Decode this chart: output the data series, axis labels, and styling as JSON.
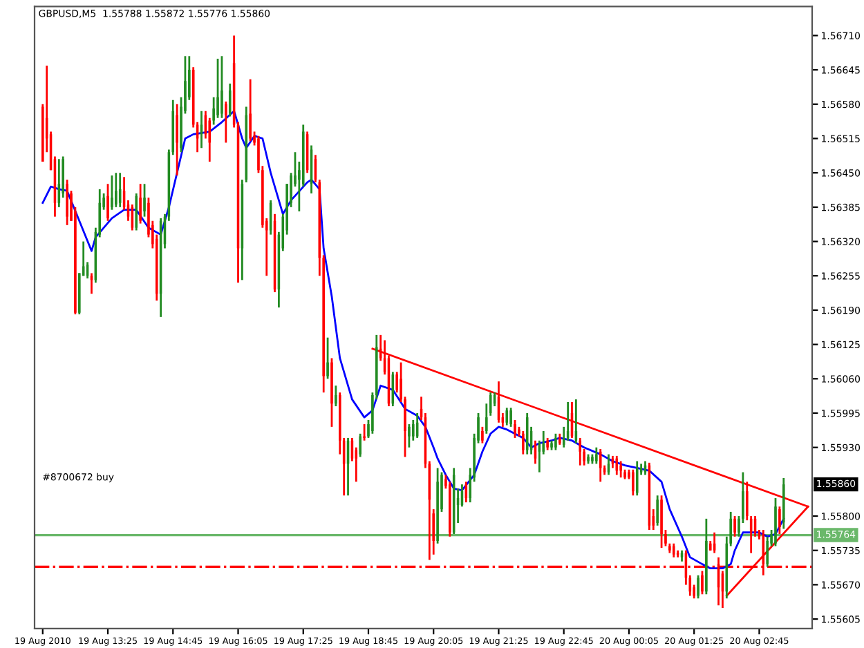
{
  "chart_data": {
    "type": "candlestick",
    "title": "GBPUSD,M5  1.55788 1.55872 1.55776 1.55860",
    "x": [
      "2010-08-19T12:05",
      "2010-08-19T12:10",
      "2010-08-19T12:15",
      "2010-08-19T12:20",
      "2010-08-19T12:25",
      "2010-08-19T12:30",
      "2010-08-19T12:35",
      "2010-08-19T12:40",
      "2010-08-19T12:45",
      "2010-08-19T12:50",
      "2010-08-19T12:55",
      "2010-08-19T13:00",
      "2010-08-19T13:05",
      "2010-08-19T13:10",
      "2010-08-19T13:15",
      "2010-08-19T13:20",
      "2010-08-19T13:25",
      "2010-08-19T13:30",
      "2010-08-19T13:35",
      "2010-08-19T13:40",
      "2010-08-19T13:45",
      "2010-08-19T13:50",
      "2010-08-19T13:55",
      "2010-08-19T14:00",
      "2010-08-19T14:05",
      "2010-08-19T14:10",
      "2010-08-19T14:15",
      "2010-08-19T14:20",
      "2010-08-19T14:25",
      "2010-08-19T14:30",
      "2010-08-19T14:35",
      "2010-08-19T14:40",
      "2010-08-19T14:45",
      "2010-08-19T14:50",
      "2010-08-19T14:55",
      "2010-08-19T15:00",
      "2010-08-19T15:05",
      "2010-08-19T15:10",
      "2010-08-19T15:15",
      "2010-08-19T15:20",
      "2010-08-19T15:25",
      "2010-08-19T15:30",
      "2010-08-19T15:35",
      "2010-08-19T15:40",
      "2010-08-19T15:45",
      "2010-08-19T15:50",
      "2010-08-19T15:55",
      "2010-08-19T16:00",
      "2010-08-19T16:05",
      "2010-08-19T16:10",
      "2010-08-19T16:15",
      "2010-08-19T16:20",
      "2010-08-19T16:25",
      "2010-08-19T16:30",
      "2010-08-19T16:35",
      "2010-08-19T16:40",
      "2010-08-19T16:45",
      "2010-08-19T16:50",
      "2010-08-19T16:55",
      "2010-08-19T17:00",
      "2010-08-19T17:05",
      "2010-08-19T17:10",
      "2010-08-19T17:15",
      "2010-08-19T17:20",
      "2010-08-19T17:25",
      "2010-08-19T17:30",
      "2010-08-19T17:35",
      "2010-08-19T17:40",
      "2010-08-19T17:45",
      "2010-08-19T17:50",
      "2010-08-19T17:55",
      "2010-08-19T18:00",
      "2010-08-19T18:05",
      "2010-08-19T18:10",
      "2010-08-19T18:15",
      "2010-08-19T18:20",
      "2010-08-19T18:25",
      "2010-08-19T18:30",
      "2010-08-19T18:35",
      "2010-08-19T18:40",
      "2010-08-19T18:45",
      "2010-08-19T18:50",
      "2010-08-19T18:55",
      "2010-08-19T19:00",
      "2010-08-19T19:05",
      "2010-08-19T19:10",
      "2010-08-19T19:15",
      "2010-08-19T19:20",
      "2010-08-19T19:25",
      "2010-08-19T19:30",
      "2010-08-19T19:35",
      "2010-08-19T19:40",
      "2010-08-19T19:45",
      "2010-08-19T19:50",
      "2010-08-19T19:55",
      "2010-08-19T20:00",
      "2010-08-19T20:05",
      "2010-08-19T20:10",
      "2010-08-19T20:15",
      "2010-08-19T20:20",
      "2010-08-19T20:25",
      "2010-08-19T20:30",
      "2010-08-19T20:35",
      "2010-08-19T20:40",
      "2010-08-19T20:45",
      "2010-08-19T20:50",
      "2010-08-19T20:55",
      "2010-08-19T21:00",
      "2010-08-19T21:05",
      "2010-08-19T21:10",
      "2010-08-19T21:15",
      "2010-08-19T21:20",
      "2010-08-19T21:25",
      "2010-08-19T21:30",
      "2010-08-19T21:35",
      "2010-08-19T21:40",
      "2010-08-19T21:45",
      "2010-08-19T21:50",
      "2010-08-19T21:55",
      "2010-08-19T22:00",
      "2010-08-19T22:05",
      "2010-08-19T22:10",
      "2010-08-19T22:15",
      "2010-08-19T22:20",
      "2010-08-19T22:25",
      "2010-08-19T22:30",
      "2010-08-19T22:35",
      "2010-08-19T22:40",
      "2010-08-19T22:45",
      "2010-08-19T22:50",
      "2010-08-19T22:55",
      "2010-08-19T23:00",
      "2010-08-19T23:05",
      "2010-08-19T23:10",
      "2010-08-19T23:15",
      "2010-08-19T23:20",
      "2010-08-19T23:25",
      "2010-08-19T23:30",
      "2010-08-19T23:35",
      "2010-08-19T23:40",
      "2010-08-19T23:45",
      "2010-08-19T23:50",
      "2010-08-19T23:55",
      "2010-08-20T00:00",
      "2010-08-20T00:05",
      "2010-08-20T00:10",
      "2010-08-20T00:15",
      "2010-08-20T00:20",
      "2010-08-20T00:25",
      "2010-08-20T00:30",
      "2010-08-20T00:35",
      "2010-08-20T00:40",
      "2010-08-20T00:45",
      "2010-08-20T00:50",
      "2010-08-20T00:55",
      "2010-08-20T01:00",
      "2010-08-20T01:05",
      "2010-08-20T01:10",
      "2010-08-20T01:15",
      "2010-08-20T01:20",
      "2010-08-20T01:25",
      "2010-08-20T01:30",
      "2010-08-20T01:35",
      "2010-08-20T01:40",
      "2010-08-20T01:45",
      "2010-08-20T01:50",
      "2010-08-20T01:55",
      "2010-08-20T02:00",
      "2010-08-20T02:05",
      "2010-08-20T02:10",
      "2010-08-20T02:15",
      "2010-08-20T02:20",
      "2010-08-20T02:25",
      "2010-08-20T02:30",
      "2010-08-20T02:35",
      "2010-08-20T02:40",
      "2010-08-20T02:45",
      "2010-08-20T02:50",
      "2010-08-20T02:55",
      "2010-08-20T03:00",
      "2010-08-20T03:05",
      "2010-08-20T03:10",
      "2010-08-20T03:15"
    ],
    "ohlc": [
      [
        1.56575,
        1.5658,
        1.56471,
        1.56471
      ],
      [
        1.56554,
        1.56653,
        1.56489,
        1.56515
      ],
      [
        1.56523,
        1.56528,
        1.56455,
        1.56455
      ],
      [
        1.56476,
        1.56481,
        1.56367,
        1.56393
      ],
      [
        1.56393,
        1.56476,
        1.56385,
        1.56429
      ],
      [
        1.56411,
        1.56481,
        1.56403,
        1.56476
      ],
      [
        1.56429,
        1.56437,
        1.56351,
        1.56367
      ],
      [
        1.56411,
        1.56416,
        1.56359,
        1.56359
      ],
      [
        1.56377,
        1.56385,
        1.56182,
        1.56185
      ],
      [
        1.56185,
        1.5626,
        1.56182,
        1.5626
      ],
      [
        1.56255,
        1.5632,
        1.56255,
        1.56273
      ],
      [
        1.56255,
        1.56281,
        1.5625,
        1.56276
      ],
      [
        1.56255,
        1.5626,
        1.56221,
        1.56247
      ],
      [
        1.56247,
        1.56346,
        1.56242,
        1.56338
      ],
      [
        1.56333,
        1.56419,
        1.56328,
        1.56393
      ],
      [
        1.56385,
        1.56411,
        1.5638,
        1.56403
      ],
      [
        1.56406,
        1.56429,
        1.56359,
        1.56364
      ],
      [
        1.56385,
        1.56445,
        1.5638,
        1.56403
      ],
      [
        1.5639,
        1.5645,
        1.56385,
        1.56416
      ],
      [
        1.56393,
        1.5645,
        1.56385,
        1.56419
      ],
      [
        1.56416,
        1.56442,
        1.5638,
        1.56385
      ],
      [
        1.5639,
        1.56398,
        1.56359,
        1.56367
      ],
      [
        1.56385,
        1.5639,
        1.56341,
        1.56346
      ],
      [
        1.56346,
        1.56411,
        1.56341,
        1.56406
      ],
      [
        1.56403,
        1.56429,
        1.56354,
        1.56359
      ],
      [
        1.56377,
        1.56429,
        1.56367,
        1.56403
      ],
      [
        1.56393,
        1.56403,
        1.56328,
        1.56333
      ],
      [
        1.56351,
        1.56359,
        1.56307,
        1.56315
      ],
      [
        1.56325,
        1.56333,
        1.56208,
        1.56221
      ],
      [
        1.56221,
        1.56364,
        1.56177,
        1.56359
      ],
      [
        1.56315,
        1.56372,
        1.56307,
        1.56367
      ],
      [
        1.56367,
        1.56494,
        1.56359,
        1.56489
      ],
      [
        1.56489,
        1.56588,
        1.56484,
        1.56567
      ],
      [
        1.56559,
        1.5658,
        1.56445,
        1.56507
      ],
      [
        1.56497,
        1.56593,
        1.56489,
        1.56575
      ],
      [
        1.56567,
        1.56671,
        1.56562,
        1.56624
      ],
      [
        1.56593,
        1.56671,
        1.56588,
        1.56645
      ],
      [
        1.56645,
        1.5665,
        1.56536,
        1.56541
      ],
      [
        1.56541,
        1.56546,
        1.56489,
        1.56515
      ],
      [
        1.56523,
        1.56567,
        1.56497,
        1.56541
      ],
      [
        1.56559,
        1.56567,
        1.56515,
        1.56523
      ],
      [
        1.56549,
        1.56554,
        1.56471,
        1.56507
      ],
      [
        1.56549,
        1.56593,
        1.56541,
        1.56572
      ],
      [
        1.56559,
        1.56666,
        1.56554,
        1.56593
      ],
      [
        1.56562,
        1.56671,
        1.56554,
        1.56606
      ],
      [
        1.5658,
        1.56585,
        1.56507,
        1.56559
      ],
      [
        1.56562,
        1.56619,
        1.56557,
        1.56606
      ],
      [
        1.56658,
        1.5671,
        1.56536,
        1.56541
      ],
      [
        1.56541,
        1.56546,
        1.56242,
        1.56307
      ],
      [
        1.56307,
        1.56437,
        1.56247,
        1.56429
      ],
      [
        1.56437,
        1.56575,
        1.56432,
        1.56559
      ],
      [
        1.56562,
        1.56627,
        1.5651,
        1.56515
      ],
      [
        1.5652,
        1.56528,
        1.56502,
        1.56507
      ],
      [
        1.56515,
        1.5652,
        1.5645,
        1.56455
      ],
      [
        1.56455,
        1.56463,
        1.56346,
        1.56351
      ],
      [
        1.56359,
        1.56364,
        1.56255,
        1.56341
      ],
      [
        1.56341,
        1.56398,
        1.56333,
        1.56393
      ],
      [
        1.56359,
        1.56372,
        1.56224,
        1.56229
      ],
      [
        1.56229,
        1.56338,
        1.56195,
        1.56333
      ],
      [
        1.56307,
        1.56372,
        1.56302,
        1.56367
      ],
      [
        1.56341,
        1.56429,
        1.56333,
        1.56429
      ],
      [
        1.56393,
        1.5645,
        1.56385,
        1.56445
      ],
      [
        1.56429,
        1.56489,
        1.56424,
        1.56445
      ],
      [
        1.56437,
        1.56471,
        1.56377,
        1.56455
      ],
      [
        1.56429,
        1.56541,
        1.56424,
        1.56528
      ],
      [
        1.56523,
        1.56528,
        1.5645,
        1.56455
      ],
      [
        1.56429,
        1.56502,
        1.56411,
        1.56494
      ],
      [
        1.56476,
        1.56484,
        1.56432,
        1.56437
      ],
      [
        1.56432,
        1.56437,
        1.56255,
        1.56289
      ],
      [
        1.56289,
        1.56294,
        1.56034,
        1.56065
      ],
      [
        1.56065,
        1.56138,
        1.5606,
        1.56091
      ],
      [
        1.56091,
        1.56099,
        1.55969,
        1.56013
      ],
      [
        1.56013,
        1.56047,
        1.56008,
        1.56029
      ],
      [
        1.56029,
        1.56034,
        1.55917,
        1.55943
      ],
      [
        1.55943,
        1.55948,
        1.55839,
        1.55899
      ],
      [
        1.55899,
        1.55948,
        1.55839,
        1.55943
      ],
      [
        1.55943,
        1.55948,
        1.55904,
        1.55909
      ],
      [
        1.55925,
        1.5593,
        1.55865,
        1.55909
      ],
      [
        1.55917,
        1.55956,
        1.55912,
        1.55951
      ],
      [
        1.55951,
        1.55974,
        1.55943,
        1.55948
      ],
      [
        1.55951,
        1.55982,
        1.55948,
        1.55974
      ],
      [
        1.55961,
        1.56034,
        1.55956,
        1.56029
      ],
      [
        1.56029,
        1.56143,
        1.56021,
        1.5612
      ],
      [
        1.56117,
        1.56143,
        1.56094,
        1.56099
      ],
      [
        1.56099,
        1.56133,
        1.56068,
        1.56073
      ],
      [
        1.56099,
        1.56104,
        1.56008,
        1.56013
      ],
      [
        1.56013,
        1.56073,
        1.56008,
        1.56068
      ],
      [
        1.56068,
        1.56073,
        1.56034,
        1.56039
      ],
      [
        1.5606,
        1.56091,
        1.56016,
        1.56021
      ],
      [
        1.56021,
        1.56026,
        1.55912,
        1.55961
      ],
      [
        1.55951,
        1.55974,
        1.5593,
        1.55969
      ],
      [
        1.55951,
        1.55982,
        1.55943,
        1.55974
      ],
      [
        1.55951,
        1.55995,
        1.55948,
        1.55977
      ],
      [
        1.56003,
        1.56026,
        1.55982,
        1.55987
      ],
      [
        1.55987,
        1.55995,
        1.55891,
        1.55899
      ],
      [
        1.55899,
        1.55904,
        1.55717,
        1.55831
      ],
      [
        1.55805,
        1.55813,
        1.55727,
        1.55753
      ],
      [
        1.55753,
        1.55891,
        1.55748,
        1.55865
      ],
      [
        1.55813,
        1.55883,
        1.55808,
        1.55878
      ],
      [
        1.5587,
        1.55878,
        1.55852,
        1.55857
      ],
      [
        1.5586,
        1.55865,
        1.55761,
        1.55769
      ],
      [
        1.55769,
        1.55891,
        1.55766,
        1.55878
      ],
      [
        1.55821,
        1.55852,
        1.55787,
        1.55834
      ],
      [
        1.55821,
        1.5586,
        1.55818,
        1.55847
      ],
      [
        1.5586,
        1.55865,
        1.55826,
        1.55834
      ],
      [
        1.55834,
        1.55891,
        1.55826,
        1.55878
      ],
      [
        1.55873,
        1.55956,
        1.55865,
        1.55948
      ],
      [
        1.55943,
        1.55995,
        1.55938,
        1.55987
      ],
      [
        1.55961,
        1.55969,
        1.55938,
        1.55943
      ],
      [
        1.55961,
        1.56013,
        1.55956,
        1.55987
      ],
      [
        1.55995,
        1.56034,
        1.5599,
        1.56029
      ],
      [
        1.56013,
        1.56034,
        1.56008,
        1.56029
      ],
      [
        1.56026,
        1.56055,
        1.55977,
        1.55982
      ],
      [
        1.55987,
        1.55995,
        1.55969,
        1.55977
      ],
      [
        1.55977,
        1.56005,
        1.55972,
        1.56
      ],
      [
        1.55974,
        1.56005,
        1.55969,
        1.56
      ],
      [
        1.55974,
        1.55982,
        1.55948,
        1.55956
      ],
      [
        1.55964,
        1.55969,
        1.55951,
        1.55956
      ],
      [
        1.55956,
        1.55961,
        1.55917,
        1.55925
      ],
      [
        1.55925,
        1.55995,
        1.55917,
        1.55987
      ],
      [
        1.55925,
        1.55969,
        1.55917,
        1.55961
      ],
      [
        1.55935,
        1.55943,
        1.55899,
        1.55909
      ],
      [
        1.55922,
        1.55943,
        1.55883,
        1.55938
      ],
      [
        1.55922,
        1.55961,
        1.55917,
        1.55938
      ],
      [
        1.55943,
        1.55948,
        1.55925,
        1.5593
      ],
      [
        1.5593,
        1.55943,
        1.55925,
        1.55938
      ],
      [
        1.5593,
        1.55956,
        1.55925,
        1.55948
      ],
      [
        1.55948,
        1.55956,
        1.55935,
        1.55938
      ],
      [
        1.55935,
        1.55969,
        1.5593,
        1.55948
      ],
      [
        1.55948,
        1.56016,
        1.55943,
        1.55961
      ],
      [
        1.55995,
        1.56016,
        1.55948,
        1.55951
      ],
      [
        1.55943,
        1.56021,
        1.55938,
        1.55961
      ],
      [
        1.55943,
        1.55948,
        1.55896,
        1.55922
      ],
      [
        1.55922,
        1.55927,
        1.55896,
        1.55904
      ],
      [
        1.55904,
        1.55917,
        1.55899,
        1.55912
      ],
      [
        1.55904,
        1.55917,
        1.55899,
        1.55912
      ],
      [
        1.55904,
        1.5593,
        1.55899,
        1.55917
      ],
      [
        1.55922,
        1.55927,
        1.55865,
        1.55891
      ],
      [
        1.55891,
        1.55896,
        1.55878,
        1.55883
      ],
      [
        1.55883,
        1.55917,
        1.55878,
        1.55899
      ],
      [
        1.55909,
        1.55914,
        1.55891,
        1.55899
      ],
      [
        1.55909,
        1.55914,
        1.55878,
        1.55886
      ],
      [
        1.55896,
        1.55904,
        1.55873,
        1.55886
      ],
      [
        1.55883,
        1.55888,
        1.5587,
        1.55873
      ],
      [
        1.55883,
        1.55888,
        1.5587,
        1.55873
      ],
      [
        1.55883,
        1.55888,
        1.55839,
        1.55847
      ],
      [
        1.55844,
        1.55904,
        1.55839,
        1.55891
      ],
      [
        1.55883,
        1.55899,
        1.55878,
        1.55891
      ],
      [
        1.55883,
        1.55904,
        1.55878,
        1.55896
      ],
      [
        1.55896,
        1.55901,
        1.55774,
        1.55782
      ],
      [
        1.558,
        1.55813,
        1.55774,
        1.55782
      ],
      [
        1.55787,
        1.55839,
        1.55782,
        1.55831
      ],
      [
        1.55831,
        1.55839,
        1.5574,
        1.55766
      ],
      [
        1.55766,
        1.55774,
        1.55743,
        1.55748
      ],
      [
        1.55743,
        1.55748,
        1.5573,
        1.55735
      ],
      [
        1.55743,
        1.55748,
        1.55722,
        1.55727
      ],
      [
        1.5573,
        1.55735,
        1.55722,
        1.55727
      ],
      [
        1.55722,
        1.55735,
        1.55714,
        1.5573
      ],
      [
        1.5573,
        1.55735,
        1.5567,
        1.55683
      ],
      [
        1.55683,
        1.55688,
        1.55649,
        1.55657
      ],
      [
        1.55665,
        1.5567,
        1.55644,
        1.55649
      ],
      [
        1.55649,
        1.55688,
        1.55644,
        1.55683
      ],
      [
        1.55688,
        1.55696,
        1.55652,
        1.55657
      ],
      [
        1.55657,
        1.55795,
        1.55652,
        1.55753
      ],
      [
        1.55748,
        1.55753,
        1.55735,
        1.55735
      ],
      [
        1.55748,
        1.55769,
        1.5573,
        1.55735
      ],
      [
        1.55709,
        1.55722,
        1.55631,
        1.55665
      ],
      [
        1.55691,
        1.55696,
        1.55626,
        1.55657
      ],
      [
        1.55657,
        1.55761,
        1.55644,
        1.55748
      ],
      [
        1.55748,
        1.55808,
        1.55743,
        1.55795
      ],
      [
        1.55795,
        1.558,
        1.55761,
        1.55769
      ],
      [
        1.55769,
        1.558,
        1.55761,
        1.55795
      ],
      [
        1.55795,
        1.55883,
        1.55787,
        1.55847
      ],
      [
        1.55847,
        1.55865,
        1.55792,
        1.558
      ],
      [
        1.55795,
        1.558,
        1.5573,
        1.55769
      ],
      [
        1.55795,
        1.558,
        1.55761,
        1.55769
      ],
      [
        1.55769,
        1.55774,
        1.55756,
        1.55761
      ],
      [
        1.55766,
        1.55774,
        1.55688,
        1.55709
      ],
      [
        1.55709,
        1.55761,
        1.55704,
        1.55753
      ],
      [
        1.55748,
        1.55774,
        1.55743,
        1.55766
      ],
      [
        1.55748,
        1.55834,
        1.55743,
        1.55818
      ],
      [
        1.55813,
        1.55818,
        1.55766,
        1.55779
      ],
      [
        1.55788,
        1.55872,
        1.55776,
        1.5586
      ]
    ],
    "colors": [
      "#ff0000",
      "#ff0000",
      "#ff0000",
      "#ff0000",
      "#228b22",
      "#228b22",
      "#ff0000",
      "#ff0000",
      "#ff0000",
      "#228b22",
      "#228b22",
      "#228b22",
      "#ff0000",
      "#228b22",
      "#228b22",
      "#228b22",
      "#ff0000",
      "#228b22",
      "#228b22",
      "#228b22",
      "#ff0000",
      "#ff0000",
      "#ff0000",
      "#228b22",
      "#ff0000",
      "#228b22",
      "#ff0000",
      "#ff0000",
      "#ff0000",
      "#228b22",
      "#228b22",
      "#228b22",
      "#228b22",
      "#ff0000",
      "#228b22",
      "#228b22",
      "#228b22",
      "#ff0000",
      "#ff0000",
      "#228b22",
      "#ff0000",
      "#ff0000",
      "#228b22",
      "#228b22",
      "#228b22",
      "#ff0000",
      "#228b22",
      "#ff0000",
      "#ff0000",
      "#228b22",
      "#228b22",
      "#ff0000",
      "#ff0000",
      "#ff0000",
      "#ff0000",
      "#ff0000",
      "#228b22",
      "#ff0000",
      "#228b22",
      "#228b22",
      "#228b22",
      "#228b22",
      "#228b22",
      "#228b22",
      "#228b22",
      "#ff0000",
      "#228b22",
      "#ff0000",
      "#ff0000",
      "#ff0000",
      "#228b22",
      "#ff0000",
      "#228b22",
      "#ff0000",
      "#ff0000",
      "#228b22",
      "#ff0000",
      "#ff0000",
      "#228b22",
      "#ff0000",
      "#228b22",
      "#228b22",
      "#228b22",
      "#ff0000",
      "#ff0000",
      "#ff0000",
      "#228b22",
      "#ff0000",
      "#ff0000",
      "#ff0000",
      "#228b22",
      "#228b22",
      "#228b22",
      "#ff0000",
      "#ff0000",
      "#ff0000",
      "#ff0000",
      "#228b22",
      "#228b22",
      "#ff0000",
      "#ff0000",
      "#228b22",
      "#228b22",
      "#228b22",
      "#ff0000",
      "#228b22",
      "#228b22",
      "#228b22",
      "#ff0000",
      "#228b22",
      "#228b22",
      "#228b22",
      "#ff0000",
      "#ff0000",
      "#228b22",
      "#228b22",
      "#ff0000",
      "#ff0000",
      "#ff0000",
      "#228b22",
      "#228b22",
      "#ff0000",
      "#228b22",
      "#228b22",
      "#ff0000",
      "#228b22",
      "#228b22",
      "#ff0000",
      "#228b22",
      "#228b22",
      "#ff0000",
      "#228b22",
      "#ff0000",
      "#ff0000",
      "#228b22",
      "#228b22",
      "#228b22",
      "#ff0000",
      "#ff0000",
      "#228b22",
      "#ff0000",
      "#ff0000",
      "#ff0000",
      "#ff0000",
      "#ff0000",
      "#ff0000",
      "#228b22",
      "#228b22",
      "#228b22",
      "#ff0000",
      "#ff0000",
      "#228b22",
      "#ff0000",
      "#ff0000",
      "#ff0000",
      "#ff0000",
      "#ff0000",
      "#228b22",
      "#ff0000",
      "#ff0000",
      "#ff0000",
      "#228b22",
      "#ff0000",
      "#228b22",
      "#ff0000",
      "#ff0000",
      "#ff0000",
      "#ff0000",
      "#228b22",
      "#228b22",
      "#ff0000",
      "#228b22",
      "#228b22",
      "#ff0000",
      "#ff0000",
      "#ff0000",
      "#ff0000",
      "#ff0000",
      "#228b22",
      "#228b22",
      "#228b22",
      "#ff0000",
      "#228b22"
    ],
    "series": [
      {
        "type": "line",
        "color": "#0000ff",
        "x": [
          "2010-08-19T12:05",
          "2010-08-19T12:15",
          "2010-08-19T12:25",
          "2010-08-19T12:35",
          "2010-08-19T12:50",
          "2010-08-19T13:05",
          "2010-08-19T13:10",
          "2010-08-19T13:30",
          "2010-08-19T13:45",
          "2010-08-19T14:00",
          "2010-08-19T14:15",
          "2010-08-19T14:30",
          "2010-08-19T14:40",
          "2010-08-19T14:50",
          "2010-08-19T15:00",
          "2010-08-19T15:10",
          "2010-08-19T15:30",
          "2010-08-19T15:45",
          "2010-08-19T16:00",
          "2010-08-19T16:10",
          "2010-08-19T16:15",
          "2010-08-19T16:25",
          "2010-08-19T16:35",
          "2010-08-19T16:45",
          "2010-08-19T16:55",
          "2010-08-19T17:00",
          "2010-08-19T17:10",
          "2010-08-19T17:30",
          "2010-08-19T17:35",
          "2010-08-19T17:45",
          "2010-08-19T17:50",
          "2010-08-19T18:00",
          "2010-08-19T18:10",
          "2010-08-19T18:25",
          "2010-08-19T18:40",
          "2010-08-19T18:50",
          "2010-08-19T19:00",
          "2010-08-19T19:15",
          "2010-08-19T19:30",
          "2010-08-19T19:45",
          "2010-08-19T19:55",
          "2010-08-19T20:05",
          "2010-08-19T20:10",
          "2010-08-19T20:20",
          "2010-08-19T20:30",
          "2010-08-19T20:40",
          "2010-08-19T20:55",
          "2010-08-19T21:05",
          "2010-08-19T21:15",
          "2010-08-19T21:25",
          "2010-08-19T21:35",
          "2010-08-19T21:55",
          "2010-08-19T22:05",
          "2010-08-19T22:15",
          "2010-08-19T22:30",
          "2010-08-19T22:40",
          "2010-08-19T22:55",
          "2010-08-19T23:10",
          "2010-08-19T23:30",
          "2010-08-19T23:45",
          "2010-08-20T00:00",
          "2010-08-20T00:15",
          "2010-08-20T00:30",
          "2010-08-20T00:45",
          "2010-08-20T00:55",
          "2010-08-20T01:10",
          "2010-08-20T01:20",
          "2010-08-20T01:35",
          "2010-08-20T01:45",
          "2010-08-20T02:00",
          "2010-08-20T02:10",
          "2010-08-20T02:15",
          "2010-08-20T02:25",
          "2010-08-20T02:45",
          "2010-08-20T02:55",
          "2010-08-20T03:05",
          "2010-08-20T03:15"
        ],
        "values": [
          1.56393,
          1.56424,
          1.56419,
          1.56416,
          1.56359,
          1.56302,
          1.56328,
          1.56364,
          1.5638,
          1.5638,
          1.56346,
          1.56333,
          1.56385,
          1.5645,
          1.56515,
          1.56523,
          1.56528,
          1.56546,
          1.56567,
          1.56515,
          1.56497,
          1.5652,
          1.56515,
          1.5645,
          1.56398,
          1.56372,
          1.56398,
          1.56432,
          1.56437,
          1.56419,
          1.56307,
          1.56216,
          1.56099,
          1.56021,
          1.55987,
          1.56,
          1.56047,
          1.56039,
          1.56003,
          1.5599,
          1.55969,
          1.5593,
          1.55909,
          1.55878,
          1.55852,
          1.55849,
          1.55878,
          1.55922,
          1.55956,
          1.55969,
          1.55964,
          1.55948,
          1.5593,
          1.55938,
          1.55943,
          1.55948,
          1.55943,
          1.5593,
          1.55917,
          1.55904,
          1.55896,
          1.55891,
          1.55886,
          1.55865,
          1.55813,
          1.55761,
          1.55722,
          1.55709,
          1.55701,
          1.55701,
          1.55709,
          1.55735,
          1.55769,
          1.55769,
          1.55761,
          1.55766,
          1.55795
        ]
      },
      {
        "type": "line",
        "color": "#ff0000",
        "x": [
          "2010-08-19T18:50",
          "2010-08-20T03:45"
        ],
        "values": [
          1.56117,
          1.55818
        ]
      },
      {
        "type": "line",
        "color": "#ff0000",
        "x": [
          "2010-08-20T02:05",
          "2010-08-20T03:45"
        ],
        "values": [
          1.55649,
          1.55818
        ]
      }
    ],
    "ref_lines": [
      {
        "axis": "y",
        "value": 1.55764,
        "label": "1.55764",
        "color": "#6ab86a",
        "line_style": "solid"
      },
      {
        "axis": "y",
        "value": 1.55704,
        "color": "#ff0000",
        "line_style": "dashdot"
      }
    ],
    "annotations": [
      "#8700672 buy",
      "1.55860"
    ],
    "xlim": [
      "2010-08-19T11:55",
      "2010-08-20T03:50"
    ],
    "xticks": [
      {
        "value": "2010-08-19T12:05",
        "label": "19 Aug 2010"
      },
      {
        "value": "2010-08-19T13:25",
        "label": "19 Aug 13:25"
      },
      {
        "value": "2010-08-19T14:45",
        "label": "19 Aug 14:45"
      },
      {
        "value": "2010-08-19T16:05",
        "label": "19 Aug 16:05"
      },
      {
        "value": "2010-08-19T17:25",
        "label": "19 Aug 17:25"
      },
      {
        "value": "2010-08-19T18:45",
        "label": "19 Aug 18:45"
      },
      {
        "value": "2010-08-19T20:05",
        "label": "19 Aug 20:05"
      },
      {
        "value": "2010-08-19T21:25",
        "label": "19 Aug 21:25"
      },
      {
        "value": "2010-08-19T22:45",
        "label": "19 Aug 22:45"
      },
      {
        "value": "2010-08-20T00:05",
        "label": "20 Aug 00:05"
      },
      {
        "value": "2010-08-20T01:25",
        "label": "20 Aug 01:25"
      },
      {
        "value": "2010-08-20T02:45",
        "label": "20 Aug 02:45"
      }
    ],
    "ylim": [
      1.55587,
      1.56765
    ],
    "yticks": [
      1.55605,
      {
        "value": 1.5567,
        "label": "1.55670"
      },
      1.55735,
      {
        "value": 1.558,
        "label": "1.55800"
      },
      {
        "value": 1.5593,
        "label": "1.55930"
      },
      1.55995,
      {
        "value": 1.5606,
        "label": "1.56060"
      },
      1.56125,
      {
        "value": 1.5619,
        "label": "1.56190"
      },
      1.56255,
      {
        "value": 1.5632,
        "label": "1.56320"
      },
      1.56385,
      {
        "value": 1.5645,
        "label": "1.56450"
      },
      1.56515,
      {
        "value": 1.5658,
        "label": "1.56580"
      },
      1.56645,
      {
        "value": 1.5671,
        "label": "1.56710"
      }
    ],
    "grid": false,
    "legend": false
  }
}
